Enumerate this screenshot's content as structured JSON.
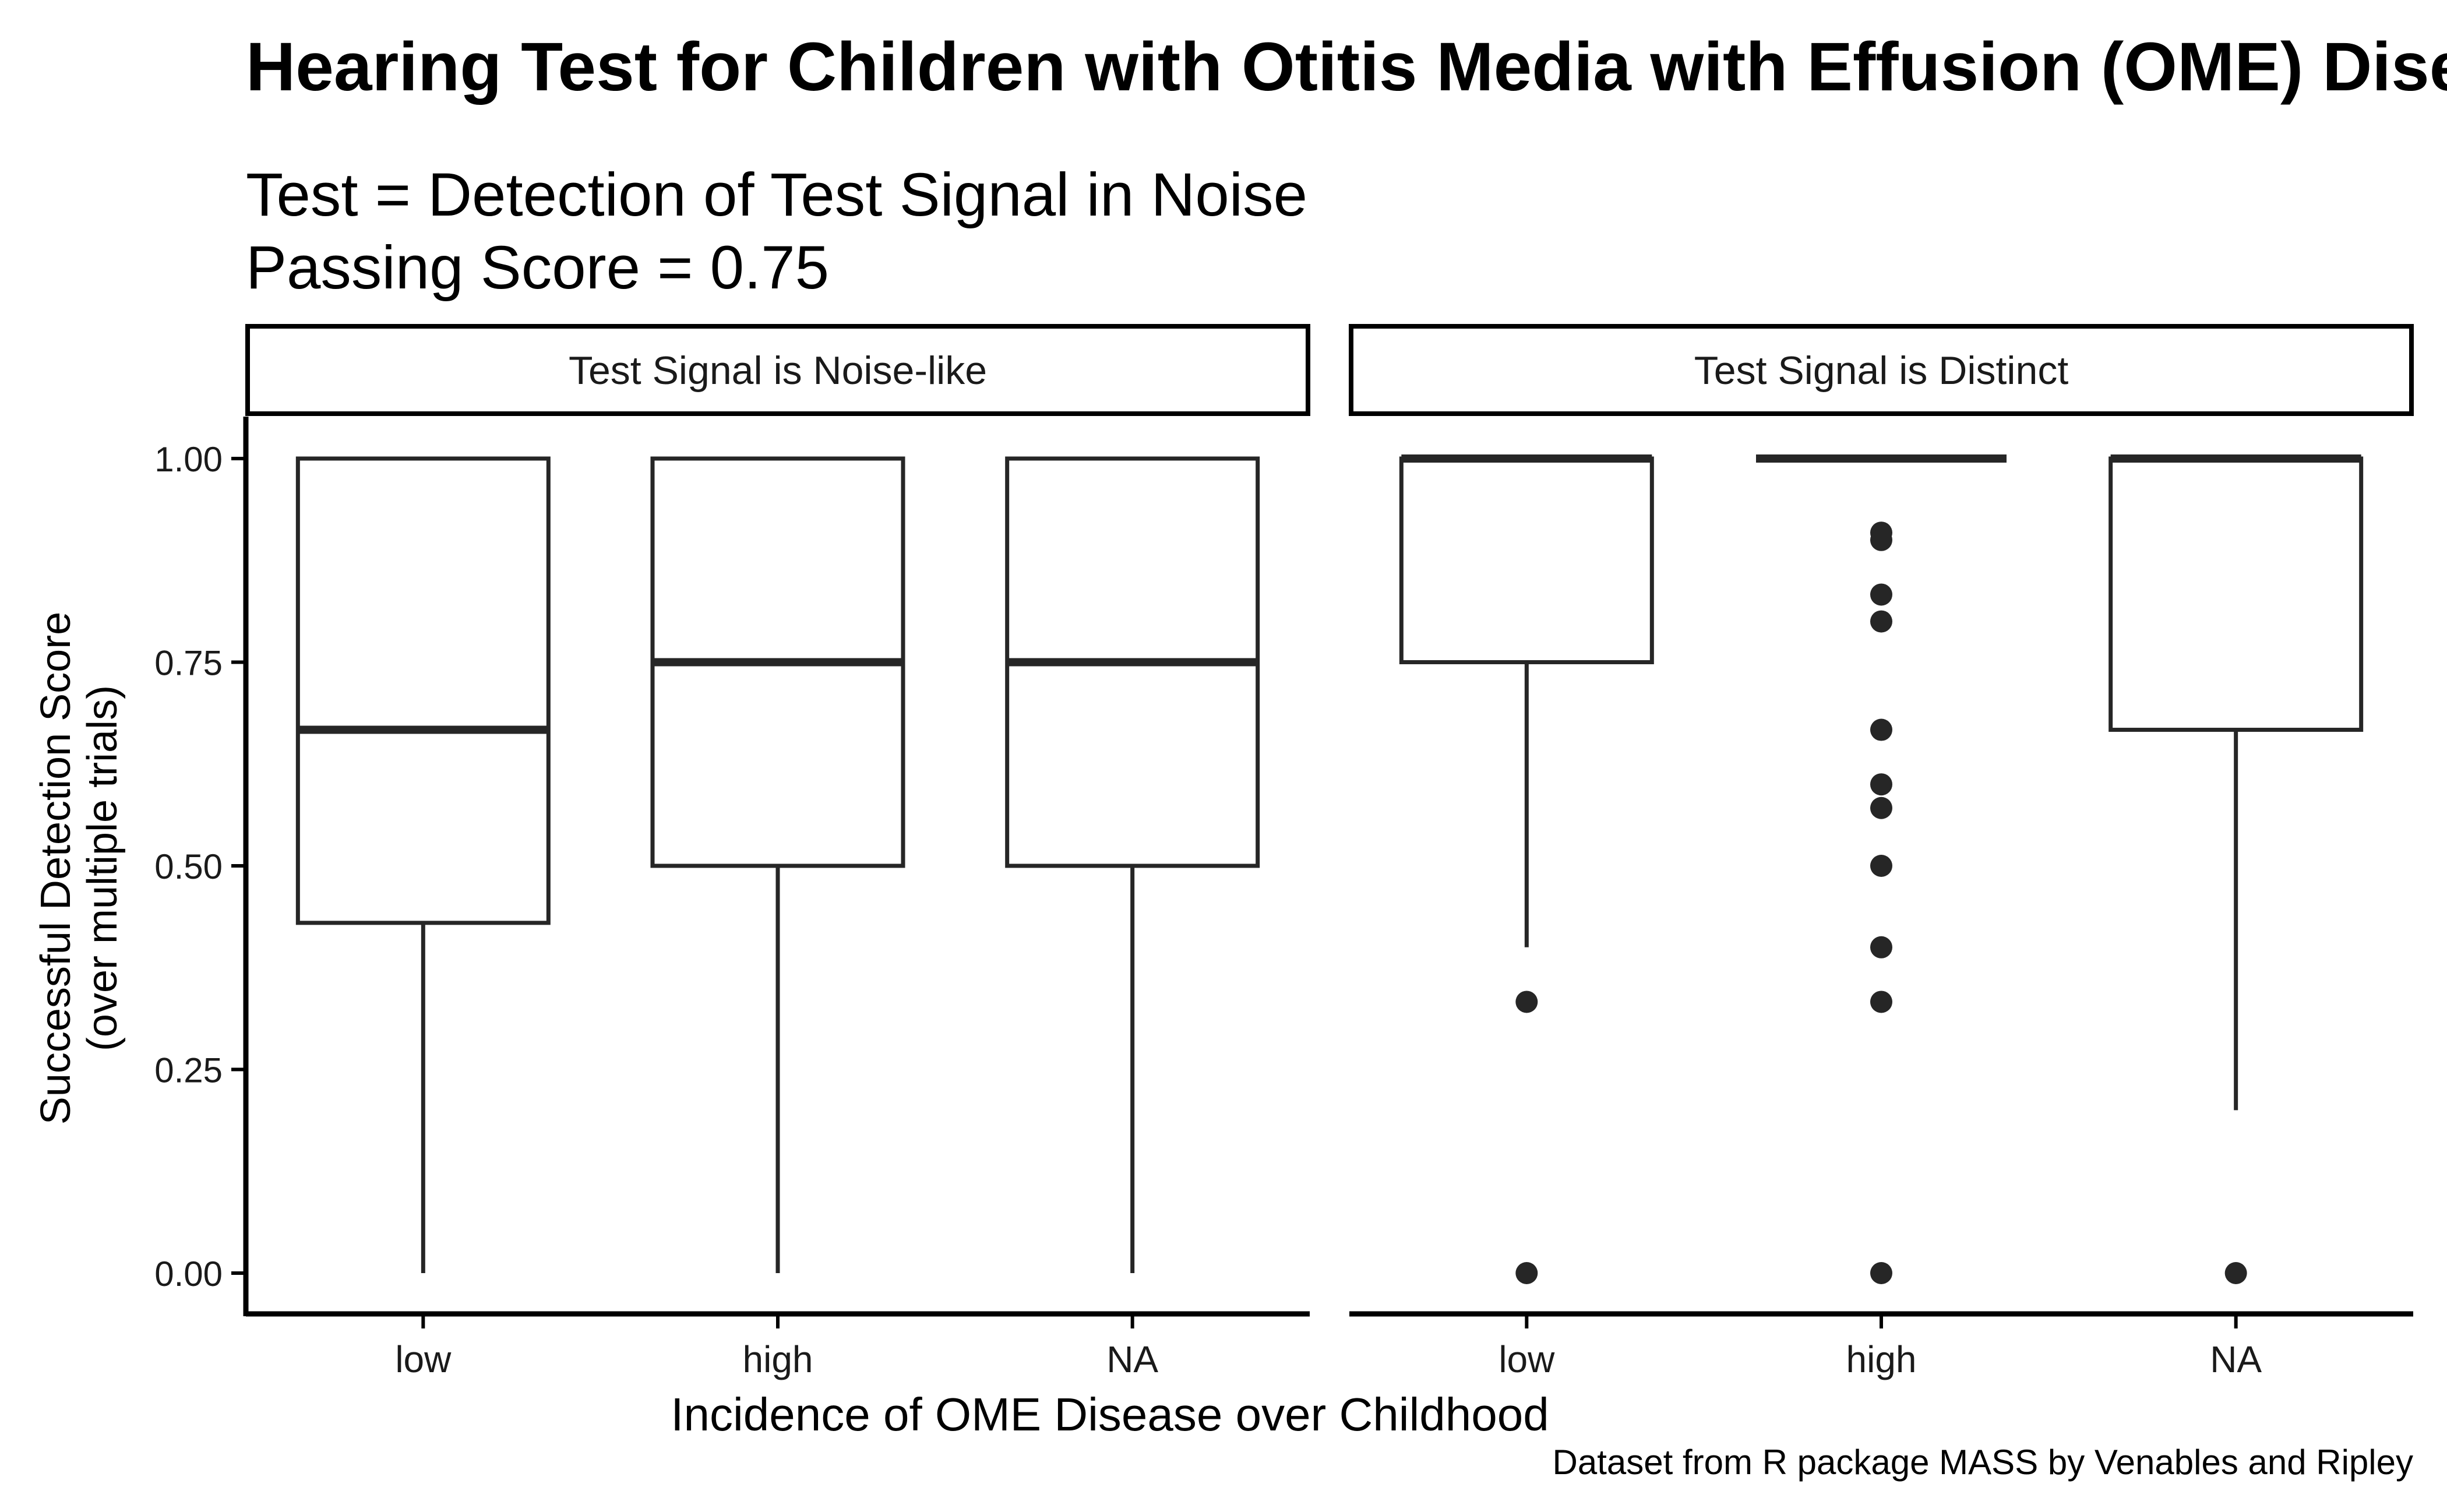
{
  "chart_data": {
    "type": "boxplot",
    "title": "Hearing Test for Children with Otitis Media with Effusion (OME) Disease",
    "subtitle_lines": [
      "Test = Detection of  Test Signal in Noise",
      "Passing Score = 0.75"
    ],
    "xlabel": "Incidence of OME Disease over Childhood",
    "ylabel_lines": [
      "Successful Detection Score",
      "(over multiple trials)"
    ],
    "caption": "Dataset from R package MASS by Venables and Ripley",
    "categories": [
      "low",
      "high",
      "NA"
    ],
    "ylim": [
      -0.05,
      1.05
    ],
    "y_ticks": [
      0,
      0.25,
      0.5,
      0.75,
      1.0
    ],
    "y_tick_labels": [
      "0.00",
      "0.25",
      "0.50",
      "0.75",
      "1.00"
    ],
    "grid": false,
    "colors": {
      "box_line": "#262626",
      "point": "#262626",
      "axis": "#000000",
      "strip_border": "#000000"
    },
    "panels": [
      {
        "label": "Test Signal is Noise-like",
        "boxes": [
          {
            "category": "low",
            "whisker_low": 0.0,
            "q1": 0.43,
            "median": 0.667,
            "q3": 1.0,
            "whisker_high": 1.0,
            "outliers": []
          },
          {
            "category": "high",
            "whisker_low": 0.0,
            "q1": 0.5,
            "median": 0.75,
            "q3": 1.0,
            "whisker_high": 1.0,
            "outliers": []
          },
          {
            "category": "NA",
            "whisker_low": 0.0,
            "q1": 0.5,
            "median": 0.75,
            "q3": 1.0,
            "whisker_high": 1.0,
            "outliers": []
          }
        ]
      },
      {
        "label": "Test Signal is Distinct",
        "boxes": [
          {
            "category": "low",
            "whisker_low": 0.4,
            "q1": 0.75,
            "median": 1.0,
            "q3": 1.0,
            "whisker_high": 1.0,
            "outliers": [
              0.333,
              0.0
            ]
          },
          {
            "category": "high",
            "whisker_low": 1.0,
            "q1": 1.0,
            "median": 1.0,
            "q3": 1.0,
            "whisker_high": 1.0,
            "outliers": [
              0.909,
              0.9,
              0.833,
              0.8,
              0.667,
              0.6,
              0.571,
              0.5,
              0.4,
              0.333,
              0.0
            ]
          },
          {
            "category": "NA",
            "whisker_low": 0.2,
            "q1": 0.667,
            "median": 1.0,
            "q3": 1.0,
            "whisker_high": 1.0,
            "outliers": [
              0.0
            ]
          }
        ]
      }
    ]
  }
}
